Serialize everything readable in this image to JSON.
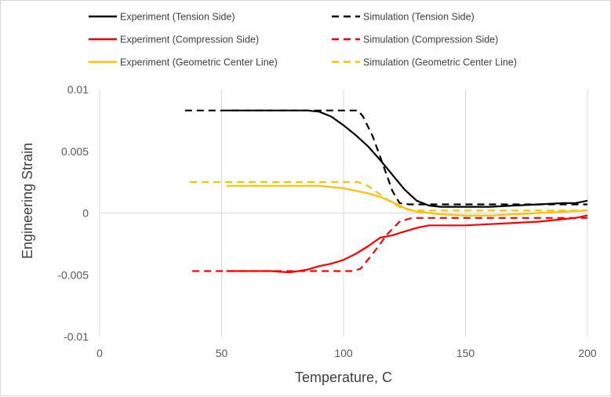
{
  "chart_data": {
    "type": "line",
    "title": "",
    "xlabel": "Temperature, C",
    "ylabel": "Engineering Strain",
    "xlim": [
      0,
      200
    ],
    "ylim": [
      -0.01,
      0.01
    ],
    "x_ticks": [
      0,
      50,
      100,
      150,
      200
    ],
    "y_ticks": [
      -0.01,
      -0.005,
      0,
      0.005,
      0.01
    ],
    "x_tick_labels": [
      "0",
      "50",
      "100",
      "150",
      "200"
    ],
    "y_tick_labels": [
      "-0.01",
      "-0.005",
      "0",
      "0.005",
      "0.01"
    ],
    "grid": "vertical",
    "legend_position": "top",
    "series": [
      {
        "name": "Experiment (Tension Side)",
        "color": "#000000",
        "dash": "solid",
        "points": [
          [
            52,
            0.0083
          ],
          [
            85,
            0.0083
          ],
          [
            90,
            0.0082
          ],
          [
            95,
            0.0078
          ],
          [
            100,
            0.0071
          ],
          [
            105,
            0.0063
          ],
          [
            110,
            0.0054
          ],
          [
            115,
            0.0043
          ],
          [
            120,
            0.0031
          ],
          [
            125,
            0.0019
          ],
          [
            130,
            0.001
          ],
          [
            135,
            0.0006
          ],
          [
            140,
            0.0005
          ],
          [
            150,
            0.0005
          ],
          [
            160,
            0.0005
          ],
          [
            170,
            0.0006
          ],
          [
            180,
            0.0007
          ],
          [
            190,
            0.0008
          ],
          [
            195,
            0.0008
          ],
          [
            200,
            0.001
          ]
        ]
      },
      {
        "name": "Simulation (Tension Side)",
        "color": "#000000",
        "dash": "dashed",
        "points": [
          [
            35,
            0.0083
          ],
          [
            106,
            0.0083
          ],
          [
            108,
            0.0078
          ],
          [
            112,
            0.0062
          ],
          [
            116,
            0.004
          ],
          [
            120,
            0.0018
          ],
          [
            123,
            0.0008
          ],
          [
            127,
            0.0007
          ],
          [
            200,
            0.0007
          ]
        ]
      },
      {
        "name": "Experiment (Compression Side)",
        "color": "#ff0000",
        "dash": "solid",
        "points": [
          [
            52,
            -0.0047
          ],
          [
            60,
            -0.0047
          ],
          [
            70,
            -0.0047
          ],
          [
            78,
            -0.0048
          ],
          [
            85,
            -0.0046
          ],
          [
            90,
            -0.0043
          ],
          [
            95,
            -0.0041
          ],
          [
            100,
            -0.0038
          ],
          [
            105,
            -0.0033
          ],
          [
            110,
            -0.0027
          ],
          [
            115,
            -0.002
          ],
          [
            120,
            -0.0018
          ],
          [
            125,
            -0.0015
          ],
          [
            130,
            -0.0012
          ],
          [
            135,
            -0.001
          ],
          [
            140,
            -0.001
          ],
          [
            150,
            -0.001
          ],
          [
            160,
            -0.0009
          ],
          [
            170,
            -0.0008
          ],
          [
            180,
            -0.0007
          ],
          [
            190,
            -0.0005
          ],
          [
            195,
            -0.0004
          ],
          [
            200,
            -0.0002
          ]
        ]
      },
      {
        "name": "Simulation (Compression Side)",
        "color": "#ff0000",
        "dash": "dashed",
        "points": [
          [
            38,
            -0.0047
          ],
          [
            104,
            -0.0047
          ],
          [
            107,
            -0.0045
          ],
          [
            112,
            -0.0033
          ],
          [
            118,
            -0.0017
          ],
          [
            123,
            -0.0007
          ],
          [
            128,
            -0.0004
          ],
          [
            200,
            -0.0004
          ]
        ]
      },
      {
        "name": "Experiment (Geometric Center Line)",
        "color": "#ffc000",
        "dash": "solid",
        "points": [
          [
            52,
            0.0022
          ],
          [
            90,
            0.0022
          ],
          [
            95,
            0.0021
          ],
          [
            100,
            0.002
          ],
          [
            105,
            0.0018
          ],
          [
            110,
            0.0016
          ],
          [
            115,
            0.0013
          ],
          [
            120,
            0.0009
          ],
          [
            125,
            0.0004
          ],
          [
            130,
            0.0001
          ],
          [
            135,
            0.0
          ],
          [
            140,
            -0.0001
          ],
          [
            150,
            -0.0002
          ],
          [
            160,
            -0.0002
          ],
          [
            170,
            -0.0001
          ],
          [
            180,
            0.0
          ],
          [
            190,
            0.0001
          ],
          [
            200,
            0.0002
          ]
        ]
      },
      {
        "name": "Simulation (Geometric Center Line)",
        "color": "#ffc000",
        "dash": "dashed",
        "points": [
          [
            37,
            0.0025
          ],
          [
            106,
            0.0025
          ],
          [
            110,
            0.0022
          ],
          [
            115,
            0.0015
          ],
          [
            120,
            0.0008
          ],
          [
            125,
            0.0003
          ],
          [
            130,
            0.0002
          ],
          [
            200,
            0.0002
          ]
        ]
      }
    ]
  }
}
